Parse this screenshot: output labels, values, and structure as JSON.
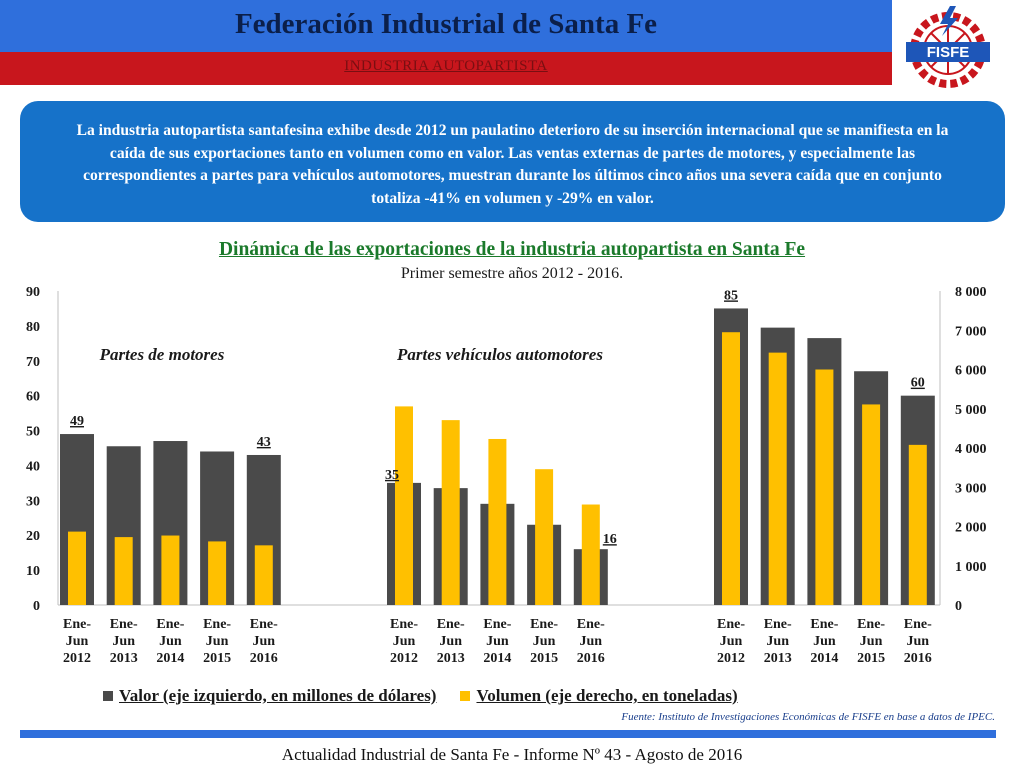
{
  "header": {
    "title": "Federación Industrial de Santa Fe",
    "subtitle": "INDUSTRIA AUTOPARTISTA",
    "logo_text": "FISFE"
  },
  "summary": "La industria autopartista santafesina exhibe desde 2012 un paulatino deterioro de su inserción internacional que se manifiesta en la caída de sus exportaciones tanto en volumen como en valor. Las ventas externas de partes de motores, y especialmente las correspondientes a partes para vehículos automotores, muestran durante los últimos cinco años una severa caída que en conjunto totaliza -41% en volumen y -29% en valor.",
  "colors": {
    "valor": "#4a4a4a",
    "volumen": "#ffc000",
    "header_blue": "#2f6fdc",
    "header_red": "#c8161d",
    "summary_blue": "#1672c9",
    "title_green": "#1b7a2b"
  },
  "chart_data": {
    "type": "bar",
    "title": "Dinámica de las exportaciones de la industria autopartista en Santa Fe",
    "subtitle": "Primer semestre años 2012 - 2016.",
    "y_left": {
      "ylim": [
        0,
        90
      ],
      "ticks": [
        "0",
        "10",
        "20",
        "30",
        "40",
        "50",
        "60",
        "70",
        "80",
        "90"
      ]
    },
    "y_right": {
      "ylim": [
        0,
        8000
      ],
      "ticks": [
        "0",
        "1 000",
        "2 000",
        "3 000",
        "4 000",
        "5 000",
        "6 000",
        "7 000",
        "8 000"
      ]
    },
    "categories": [
      [
        "Ene-",
        "Jun",
        "2012"
      ],
      [
        "Ene-",
        "Jun",
        "2013"
      ],
      [
        "Ene-",
        "Jun",
        "2014"
      ],
      [
        "Ene-",
        "Jun",
        "2015"
      ],
      [
        "Ene-",
        "Jun",
        "2016"
      ]
    ],
    "groups": [
      {
        "label": "Partes de motores",
        "valor": [
          49,
          45.5,
          47,
          44,
          43
        ],
        "volumen": [
          1870,
          1730,
          1770,
          1620,
          1520
        ],
        "value_labels": [
          "49",
          "",
          "",
          "",
          "43"
        ]
      },
      {
        "label": "Partes vehículos automotores",
        "valor": [
          35,
          33.5,
          29,
          23,
          16
        ],
        "volumen": [
          5060,
          4710,
          4230,
          3460,
          2560
        ],
        "value_labels": [
          "35",
          "",
          "",
          "",
          "16"
        ]
      },
      {
        "label": "",
        "valor": [
          85,
          79.5,
          76.5,
          67,
          60
        ],
        "volumen": [
          6950,
          6430,
          6000,
          5110,
          4080
        ],
        "value_labels": [
          "85",
          "",
          "",
          "",
          "60"
        ]
      }
    ],
    "legend": [
      {
        "name": "Valor (eje izquierdo, en millones de dólares)",
        "color": "#4a4a4a"
      },
      {
        "name": "Volumen (eje derecho, en toneladas)",
        "color": "#ffc000"
      }
    ],
    "legend_position": "bottom"
  },
  "source": "Fuente: Instituto de Investigaciones Económicas de  FISFE en base a datos de IPEC.",
  "footer": "Actualidad Industrial de Santa Fe - Informe Nº 43 - Agosto de 2016"
}
